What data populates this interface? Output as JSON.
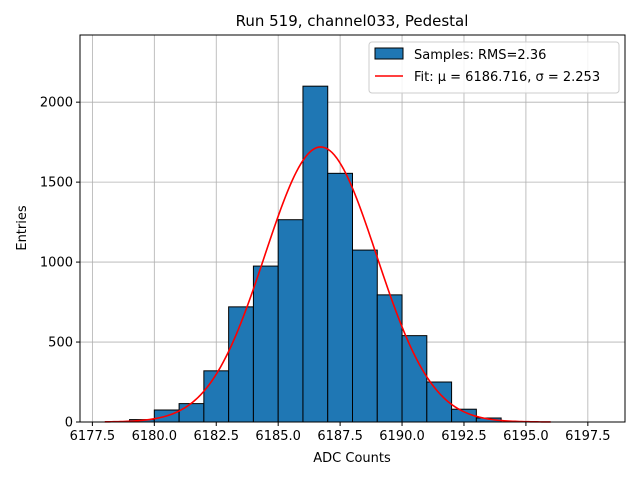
{
  "chart_data": {
    "type": "bar",
    "title": "Run 519, channel033, Pedestal",
    "xlabel": "ADC Counts",
    "ylabel": "Entries",
    "xlim": [
      6177.0,
      6199.0
    ],
    "ylim": [
      0,
      2420
    ],
    "x_ticks": [
      6177.5,
      6180.0,
      6182.5,
      6185.0,
      6187.5,
      6190.0,
      6192.5,
      6195.0,
      6197.5
    ],
    "x_tick_labels": [
      "6177.5",
      "6180.0",
      "6182.5",
      "6185.0",
      "6187.5",
      "6190.0",
      "6192.5",
      "6195.0",
      "6197.5"
    ],
    "y_ticks": [
      0,
      500,
      1000,
      1500,
      2000
    ],
    "y_tick_labels": [
      "0",
      "500",
      "1000",
      "1500",
      "2000"
    ],
    "grid": true,
    "legend_position": "top-right",
    "bin_width": 1,
    "histogram": {
      "name": "Samples: RMS=2.36",
      "color": "#1f77b4",
      "bin_left_edges": [
        6179,
        6180,
        6181,
        6182,
        6183,
        6184,
        6185,
        6186,
        6187,
        6188,
        6189,
        6190,
        6191,
        6192,
        6193
      ],
      "counts": [
        15,
        75,
        115,
        320,
        720,
        975,
        1265,
        2100,
        1555,
        1075,
        795,
        540,
        250,
        80,
        25
      ]
    },
    "fit": {
      "name": "Fit: μ = 6186.716, σ = 2.253",
      "color": "#ff0000",
      "mu": 6186.716,
      "sigma": 2.253,
      "amplitude": 1720,
      "x_range": [
        6178,
        6196
      ]
    }
  }
}
